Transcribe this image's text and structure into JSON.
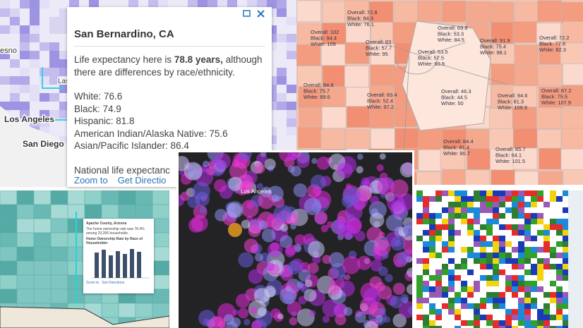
{
  "top_left_map": {
    "place_labels": [
      "esno",
      "Las",
      "Los Angeles",
      "San Diego"
    ]
  },
  "popup": {
    "title": "San Bernardino, CA",
    "intro": [
      "Life expectancy here is",
      "78.8 years,",
      "although there are differences by race/ethnicity."
    ],
    "breakdown": [
      "White: 76.6",
      "Black: 74.9",
      "Hispanic: 81.8",
      "American Indian/Alaska Native: 75.6",
      "Asian/Pacific Islander: 86.4"
    ],
    "footer": "National life expectanc",
    "links": [
      "Zoom to",
      "Get Directio"
    ]
  },
  "county_labels": [
    [
      "Overall: 72.8",
      "Black: 84.9",
      "White: 76.1"
    ],
    [
      "Overall: 102",
      "Black: 94.4",
      "White: 109"
    ],
    [
      "Overall: 83",
      "Black: 57.7",
      "White: 95"
    ],
    [
      "Overall: 69.8",
      "Black: 53.3",
      "White: 84.5"
    ],
    [
      "Overall: 53.5",
      "Black: 57.5",
      "White: 60.9"
    ],
    [
      "Overall: 91.9",
      "Black: 75.4",
      "White: 98.1"
    ],
    [
      "Overall: 72.2",
      "Black: 77.8",
      "White: 82.3"
    ],
    [
      "Overall: 84.8",
      "Black: 75.7",
      "White: 89.6"
    ],
    [
      "Overall: 83.4",
      "Black: 52.4",
      "White: 97.2"
    ],
    [
      "Overall: 46.3",
      "Black: 44.5",
      "White: 50"
    ],
    [
      "Overall: 94.6",
      "Black: 81.3",
      "White: 109.9"
    ],
    [
      "Overall: 87.2",
      "Black: 75.5",
      "White: 107.9"
    ],
    [
      "Overall: 84.4",
      "Black: 81.4",
      "White: 90.7"
    ],
    [
      "Overall: 85.7",
      "Black: 64.1",
      "White: 101.5"
    ]
  ],
  "mini_popup": {
    "title": "Apache County, Arizona",
    "text": "The home ownership rate was 78.4% among 20,395 households.",
    "chart_title": "Home Ownership Rate by Race of Householder",
    "links": [
      "Zoom to",
      "Get Directions"
    ]
  },
  "center_map": {
    "place_labels": [
      "Los Angeles"
    ]
  }
}
